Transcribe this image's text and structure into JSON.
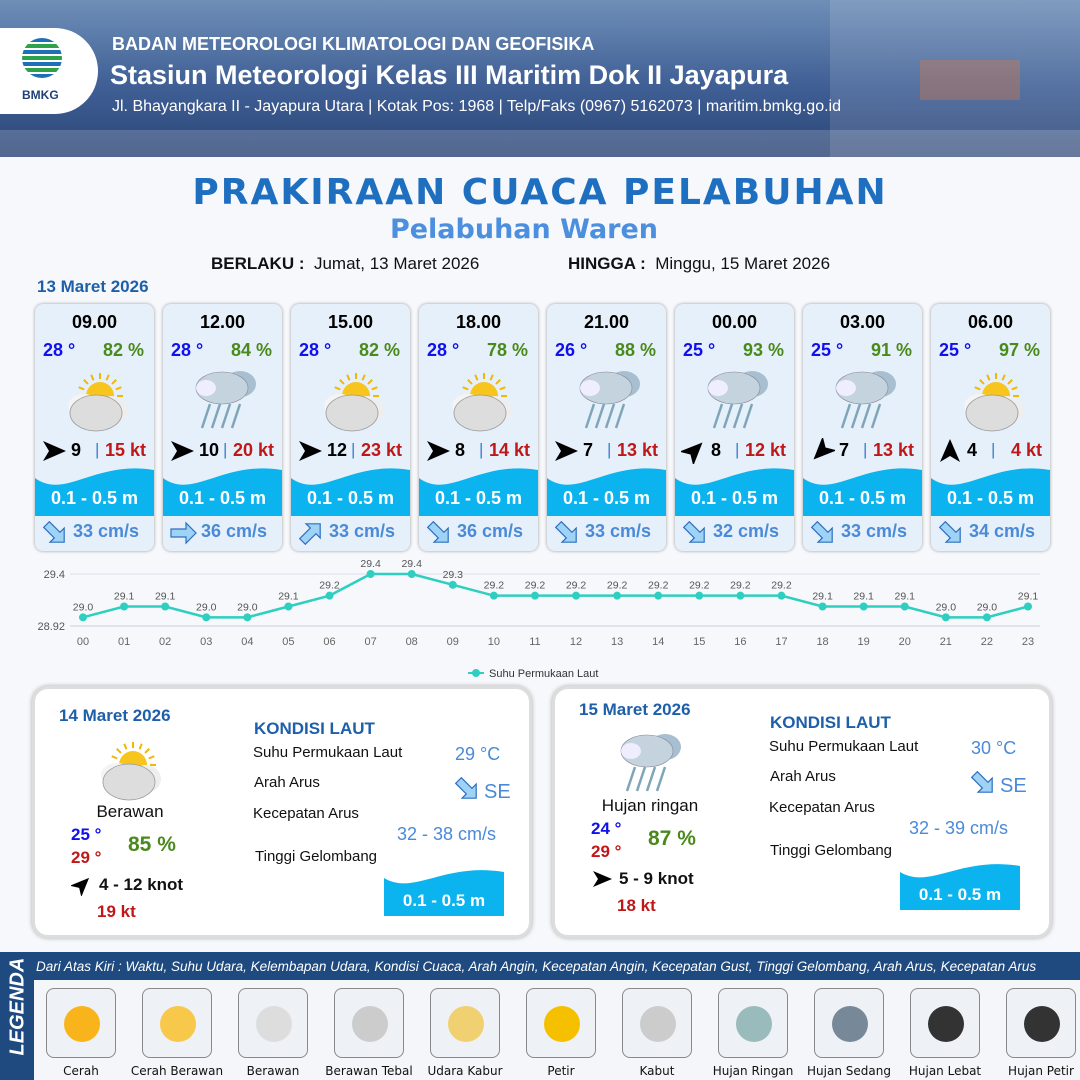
{
  "header": {
    "org": "BADAN METEOROLOGI KLIMATOLOGI DAN GEOFISIKA",
    "station": "Stasiun Meteorologi Kelas III Maritim Dok II Jayapura",
    "address": "Jl. Bhayangkara II - Jayapura Utara | Kotak Pos: 1968 | Telp/Faks (0967) 5162073 | maritim.bmkg.go.id",
    "logo_text": "BMKG"
  },
  "title": "PRAKIRAAN CUACA PELABUHAN",
  "subtitle": "Pelabuhan Waren",
  "validity": {
    "from_label": "BERLAKU :",
    "from": "Jumat, 13 Maret 2026",
    "to_label": "HINGGA :",
    "to": "Minggu, 15 Maret 2026"
  },
  "day1": {
    "date": "13 Maret 2026",
    "cards": [
      {
        "time": "09.00",
        "temp": "28 °",
        "hum": "82 %",
        "icon": "berawan",
        "wind_dir": "E",
        "wind": "9",
        "gust": "15 kt",
        "wave": "0.1 - 0.5 m",
        "cur_dir": "SE",
        "cur": "33 cm/s"
      },
      {
        "time": "12.00",
        "temp": "28 °",
        "hum": "84 %",
        "icon": "hujan-ringan",
        "wind_dir": "E",
        "wind": "10",
        "gust": "20 kt",
        "wave": "0.1 - 0.5 m",
        "cur_dir": "E",
        "cur": "36 cm/s"
      },
      {
        "time": "15.00",
        "temp": "28 °",
        "hum": "82 %",
        "icon": "berawan",
        "wind_dir": "E",
        "wind": "12",
        "gust": "23 kt",
        "wave": "0.1 - 0.5 m",
        "cur_dir": "NE",
        "cur": "33 cm/s"
      },
      {
        "time": "18.00",
        "temp": "28 °",
        "hum": "78 %",
        "icon": "berawan",
        "wind_dir": "E",
        "wind": "8",
        "gust": "14 kt",
        "wave": "0.1 - 0.5 m",
        "cur_dir": "SE",
        "cur": "36 cm/s"
      },
      {
        "time": "21.00",
        "temp": "26 °",
        "hum": "88 %",
        "icon": "hujan-ringan",
        "wind_dir": "E",
        "wind": "7",
        "gust": "13 kt",
        "wave": "0.1 - 0.5 m",
        "cur_dir": "SE",
        "cur": "33 cm/s"
      },
      {
        "time": "00.00",
        "temp": "25 °",
        "hum": "93 %",
        "icon": "hujan-ringan",
        "wind_dir": "NE",
        "wind": "8",
        "gust": "12 kt",
        "wave": "0.1 - 0.5 m",
        "cur_dir": "SE",
        "cur": "32 cm/s"
      },
      {
        "time": "03.00",
        "temp": "25 °",
        "hum": "91 %",
        "icon": "hujan-ringan",
        "wind_dir": "SW",
        "wind": "7",
        "gust": "13 kt",
        "wave": "0.1 - 0.5 m",
        "cur_dir": "SE",
        "cur": "33 cm/s"
      },
      {
        "time": "06.00",
        "temp": "25 °",
        "hum": "97 %",
        "icon": "berawan",
        "wind_dir": "N",
        "wind": "4",
        "gust": "4 kt",
        "wave": "0.1 - 0.5 m",
        "cur_dir": "SE",
        "cur": "34 cm/s"
      }
    ]
  },
  "chart_data": {
    "type": "line",
    "title": "",
    "xlabel": "",
    "ylabel": "",
    "categories": [
      "00",
      "01",
      "02",
      "03",
      "04",
      "05",
      "06",
      "07",
      "08",
      "09",
      "10",
      "11",
      "12",
      "13",
      "14",
      "15",
      "16",
      "17",
      "18",
      "19",
      "20",
      "21",
      "22",
      "23"
    ],
    "series": [
      {
        "name": "Suhu Permukaan Laut",
        "values": [
          29.0,
          29.1,
          29.1,
          29.0,
          29.0,
          29.1,
          29.2,
          29.4,
          29.4,
          29.3,
          29.2,
          29.2,
          29.2,
          29.2,
          29.2,
          29.2,
          29.2,
          29.2,
          29.1,
          29.1,
          29.1,
          29.0,
          29.0,
          29.1
        ]
      }
    ],
    "ylim": [
      28.92,
      29.4
    ],
    "yticks": [
      "29.4",
      "28.92"
    ],
    "grid": false,
    "legend": "bottom",
    "color": "#2ecfc0"
  },
  "panels": [
    {
      "date": "14 Maret 2026",
      "condition": "Berawan",
      "icon": "berawan",
      "tmin": "25 °",
      "tmax": "29 °",
      "hum": "85 %",
      "wind_dir": "NE",
      "wind": "4  - 12 knot",
      "gust": "19 kt",
      "kondisi": "KONDISI LAUT",
      "sst_label": "Suhu Permukaan Laut",
      "sst": "29 °C",
      "cur_dir_label": "Arah Arus",
      "cur_dir": "SE",
      "cur_speed_label": "Kecepatan Arus",
      "cur_speed": "32 - 38 cm/s",
      "wave_label": "Tinggi Gelombang",
      "wave": "0.1 - 0.5 m"
    },
    {
      "date": "15 Maret 2026",
      "condition": "Hujan ringan",
      "icon": "hujan-ringan",
      "tmin": "24 °",
      "tmax": "29 °",
      "hum": "87 %",
      "wind_dir": "E",
      "wind": "5  - 9 knot",
      "gust": "18 kt",
      "kondisi": "KONDISI LAUT",
      "sst_label": "Suhu Permukaan Laut",
      "sst": "30 °C",
      "cur_dir_label": "Arah Arus",
      "cur_dir": "SE",
      "cur_speed_label": "Kecepatan Arus",
      "cur_speed": "32  - 39 cm/s",
      "wave_label": "Tinggi Gelombang",
      "wave": "0.1 - 0.5 m"
    }
  ],
  "legend": {
    "title": "LEGENDA",
    "desc": "Dari Atas Kiri : Waktu, Suhu Udara, Kelembapan Udara, Kondisi Cuaca, Arah Angin, Kecepatan Angin, Kecepatan Gust, Tinggi Gelombang, Arah Arus, Kecepatan Arus",
    "items": [
      "Cerah",
      "Cerah Berawan",
      "Berawan",
      "Berawan Tebal",
      "Udara Kabur",
      "Petir",
      "Kabut",
      "Hujan Ringan",
      "Hujan Sedang",
      "Hujan Lebat",
      "Hujan Petir"
    ]
  }
}
